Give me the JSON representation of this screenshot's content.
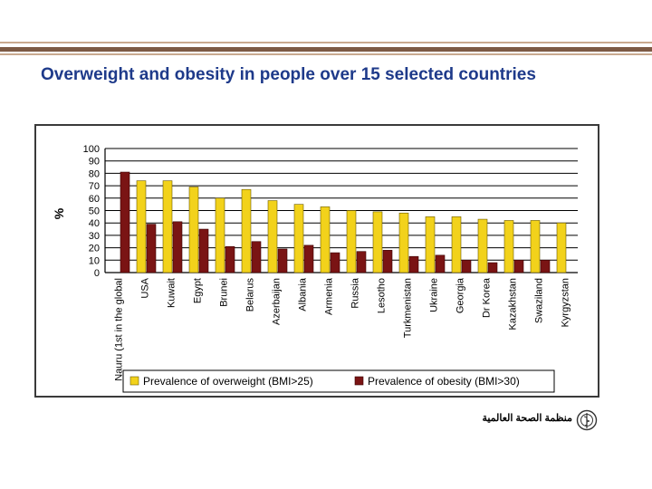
{
  "slide": {
    "title": "Overweight and obesity in people over 15 selected countries",
    "footer_org": "منظمة الصحة العالمية",
    "logo": "who-emblem-icon"
  },
  "chart_data": {
    "type": "bar",
    "title": "",
    "ylabel": "%",
    "xlabel": "",
    "ylim": [
      0,
      100
    ],
    "yticks": [
      0,
      10,
      20,
      30,
      40,
      50,
      60,
      70,
      80,
      90,
      100
    ],
    "grid": true,
    "legend_position": "bottom",
    "categories": [
      "Nauru (1st in the global",
      "USA",
      "Kuwait",
      "Egypt",
      "Brunei",
      "Belarus",
      "Azerbaijan",
      "Albania",
      "Armenia",
      "Russia",
      "Lesotho",
      "Turkmenistan",
      "Ukraine",
      "Georgia",
      "Dr Korea",
      "Kazakhstan",
      "Swaziland",
      "Kyrgyzstan"
    ],
    "series": [
      {
        "name": "Prevalence of overweight (BMI>25)",
        "color": "#f2d21b",
        "values": [
          null,
          74,
          74,
          69,
          60,
          67,
          58,
          55,
          53,
          50,
          49,
          48,
          45,
          45,
          43,
          42,
          42,
          40
        ]
      },
      {
        "name": "Prevalence of obesity (BMI>30)",
        "color": "#7a1414",
        "values": [
          81,
          39,
          41,
          35,
          21,
          25,
          19,
          22,
          16,
          17,
          18,
          13,
          14,
          10,
          8,
          10,
          10,
          null
        ]
      }
    ]
  }
}
